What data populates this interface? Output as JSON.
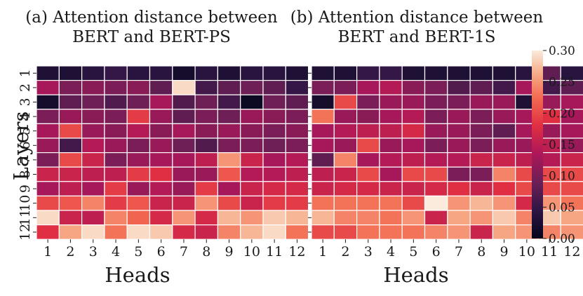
{
  "chart_data": [
    {
      "type": "heatmap",
      "title_line1": "(a) Attention distance between",
      "title_line2": "BERT and BERT-PS",
      "xlabel": "Heads",
      "ylabel": "Layers",
      "x_ticks": [
        "1",
        "2",
        "3",
        "4",
        "5",
        "6",
        "7",
        "8",
        "9",
        "10",
        "11",
        "12"
      ],
      "y_ticks": [
        "1",
        "2",
        "3",
        "4",
        "5",
        "6",
        "7",
        "8",
        "9",
        "10",
        "11",
        "12"
      ],
      "values": [
        [
          0.03,
          0.03,
          0.04,
          0.05,
          0.04,
          0.04,
          0.02,
          0.04,
          0.03,
          0.04,
          0.04,
          0.03
        ],
        [
          0.13,
          0.1,
          0.11,
          0.1,
          0.11,
          0.08,
          0.29,
          0.06,
          0.08,
          0.09,
          0.08,
          0.05
        ],
        [
          0.02,
          0.08,
          0.09,
          0.07,
          0.09,
          0.13,
          0.07,
          0.09,
          0.06,
          0.01,
          0.09,
          0.08
        ],
        [
          0.1,
          0.12,
          0.11,
          0.1,
          0.19,
          0.12,
          0.08,
          0.1,
          0.09,
          0.12,
          0.11,
          0.1
        ],
        [
          0.13,
          0.2,
          0.12,
          0.11,
          0.14,
          0.11,
          0.13,
          0.11,
          0.12,
          0.11,
          0.1,
          0.11
        ],
        [
          0.12,
          0.06,
          0.14,
          0.12,
          0.1,
          0.12,
          0.09,
          0.07,
          0.1,
          0.1,
          0.09,
          0.1
        ],
        [
          0.1,
          0.2,
          0.16,
          0.1,
          0.12,
          0.13,
          0.13,
          0.15,
          0.25,
          0.16,
          0.13,
          0.14
        ],
        [
          0.16,
          0.16,
          0.15,
          0.15,
          0.19,
          0.18,
          0.12,
          0.12,
          0.21,
          0.14,
          0.14,
          0.15
        ],
        [
          0.13,
          0.15,
          0.13,
          0.19,
          0.12,
          0.14,
          0.12,
          0.19,
          0.13,
          0.16,
          0.17,
          0.17
        ],
        [
          0.2,
          0.21,
          0.24,
          0.19,
          0.21,
          0.16,
          0.16,
          0.25,
          0.2,
          0.16,
          0.19,
          0.19
        ],
        [
          0.29,
          0.16,
          0.15,
          0.24,
          0.22,
          0.17,
          0.25,
          0.17,
          0.27,
          0.25,
          0.28,
          0.27
        ],
        [
          0.18,
          0.26,
          0.29,
          0.23,
          0.29,
          0.28,
          0.17,
          0.16,
          0.24,
          0.27,
          0.29,
          0.23
        ]
      ]
    },
    {
      "type": "heatmap",
      "title_line1": "(b) Attention distance between",
      "title_line2": "BERT and BERT-1S",
      "xlabel": "Heads",
      "ylabel": "",
      "x_ticks": [
        "1",
        "2",
        "3",
        "4",
        "5",
        "6",
        "7",
        "8",
        "9",
        "10",
        "11",
        "12"
      ],
      "y_ticks": [],
      "values": [
        [
          0.03,
          0.03,
          0.05,
          0.05,
          0.03,
          0.03,
          0.03,
          0.03,
          0.03,
          0.04,
          0.08,
          0.04
        ],
        [
          0.1,
          0.1,
          0.13,
          0.14,
          0.11,
          0.1,
          0.07,
          0.08,
          0.06,
          0.13,
          0.06,
          0.08
        ],
        [
          0.02,
          0.2,
          0.1,
          0.12,
          0.12,
          0.1,
          0.1,
          0.12,
          0.12,
          0.03,
          0.12,
          0.13
        ],
        [
          0.23,
          0.12,
          0.11,
          0.13,
          0.14,
          0.1,
          0.12,
          0.1,
          0.12,
          0.13,
          0.18,
          0.13
        ],
        [
          0.13,
          0.14,
          0.15,
          0.15,
          0.17,
          0.12,
          0.12,
          0.1,
          0.08,
          0.13,
          0.12,
          0.13
        ],
        [
          0.13,
          0.12,
          0.2,
          0.12,
          0.13,
          0.1,
          0.12,
          0.1,
          0.12,
          0.12,
          0.15,
          0.12
        ],
        [
          0.08,
          0.24,
          0.13,
          0.14,
          0.15,
          0.14,
          0.14,
          0.16,
          0.16,
          0.15,
          0.14,
          0.16
        ],
        [
          0.15,
          0.16,
          0.2,
          0.13,
          0.2,
          0.2,
          0.1,
          0.1,
          0.24,
          0.2,
          0.2,
          0.2
        ],
        [
          0.16,
          0.17,
          0.17,
          0.16,
          0.16,
          0.17,
          0.18,
          0.16,
          0.18,
          0.2,
          0.2,
          0.2
        ],
        [
          0.23,
          0.23,
          0.23,
          0.23,
          0.2,
          0.3,
          0.25,
          0.27,
          0.25,
          0.17,
          0.25,
          0.23
        ],
        [
          0.27,
          0.24,
          0.24,
          0.23,
          0.25,
          0.16,
          0.26,
          0.25,
          0.28,
          0.24,
          0.28,
          0.26
        ],
        [
          0.2,
          0.2,
          0.23,
          0.23,
          0.23,
          0.24,
          0.25,
          0.16,
          0.26,
          0.25,
          0.24,
          0.25
        ]
      ]
    }
  ],
  "colorbar": {
    "min": 0.0,
    "max": 0.3,
    "ticks": [
      "0.00",
      "0.05",
      "0.10",
      "0.15",
      "0.20",
      "0.25",
      "0.30"
    ]
  }
}
